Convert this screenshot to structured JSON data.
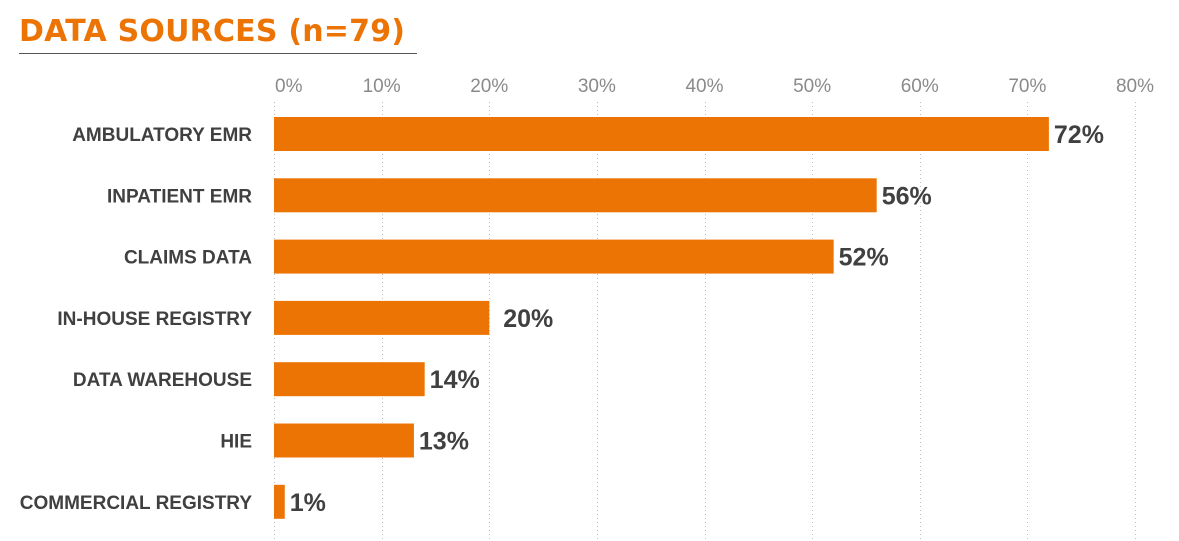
{
  "title": "DATA SOURCES (n=79)",
  "colors": {
    "bar": "#ec7404",
    "title": "#ec7404",
    "label": "#404040",
    "tick": "#8a8a8a",
    "grid": "#bdbdbd"
  },
  "chart_data": {
    "type": "bar",
    "orientation": "horizontal",
    "title": "DATA SOURCES (n=79)",
    "categories": [
      "AMBULATORY EMR",
      "INPATIENT EMR",
      "CLAIMS DATA",
      "IN-HOUSE REGISTRY",
      "DATA WAREHOUSE",
      "HIE",
      "COMMERCIAL REGISTRY"
    ],
    "values": [
      72,
      56,
      52,
      20,
      14,
      13,
      1
    ],
    "value_labels": [
      "72%",
      "56%",
      "52%",
      "20%",
      "14%",
      "13%",
      "1%"
    ],
    "xlim": [
      0,
      80
    ],
    "xticks": [
      0,
      10,
      20,
      30,
      40,
      50,
      60,
      70,
      80
    ],
    "xtick_labels": [
      "0%",
      "10%",
      "20%",
      "30%",
      "40%",
      "50%",
      "60%",
      "70%",
      "80%"
    ],
    "x_axis_position": "top",
    "grid": "vertical dotted",
    "legend": "none"
  }
}
